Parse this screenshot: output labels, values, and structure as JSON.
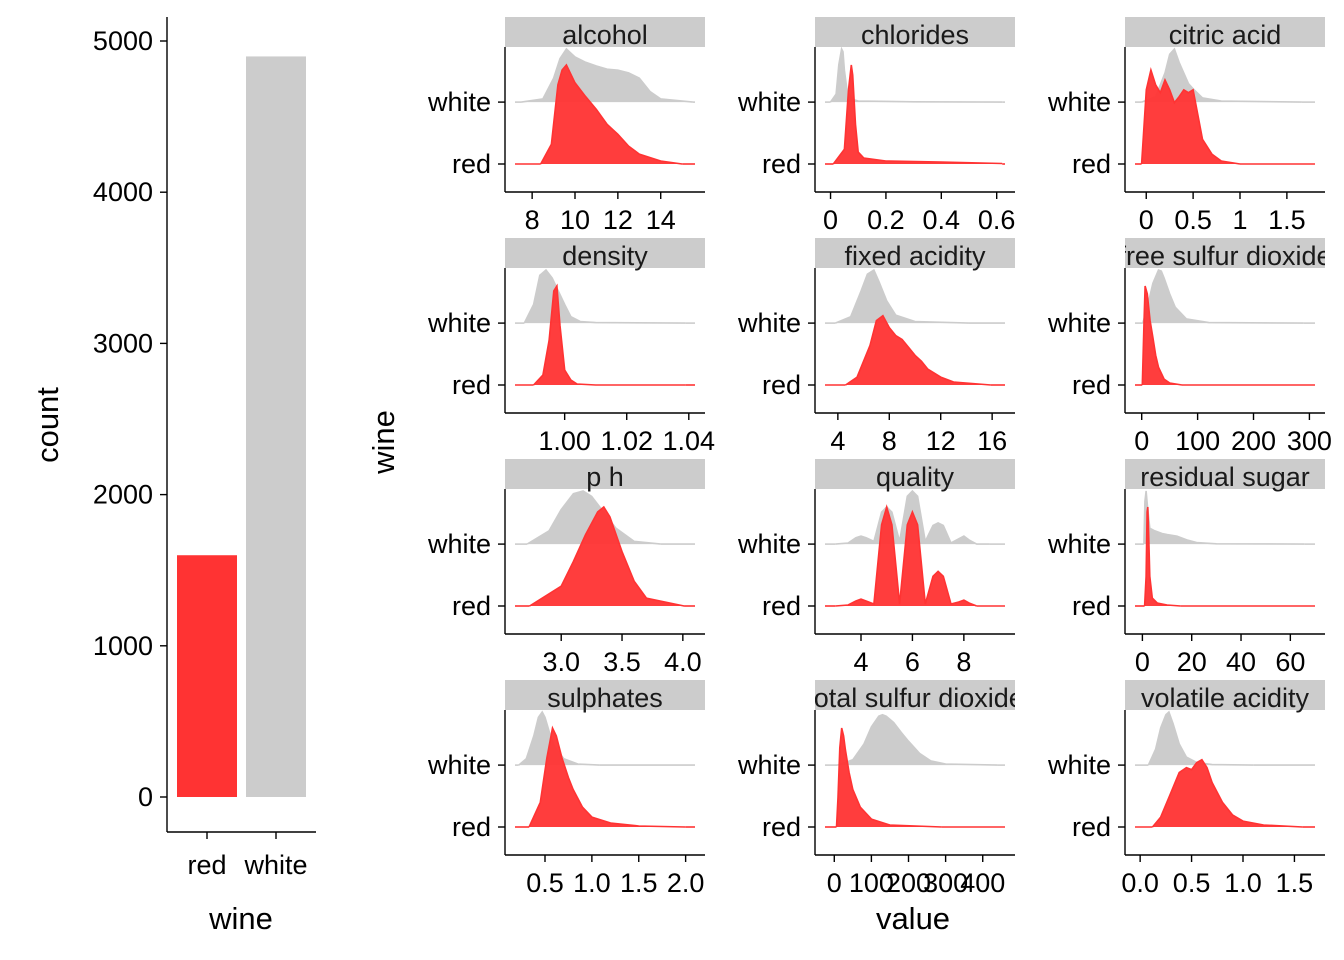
{
  "colors": {
    "red": "#ff3333",
    "white": "#cccccc",
    "strip": "#cccccc"
  },
  "chart_data": [
    {
      "type": "bar",
      "categories": [
        "red",
        "white"
      ],
      "values": [
        1599,
        4898
      ],
      "xlabel": "wine",
      "ylabel": "count",
      "ylim": [
        0,
        5130
      ],
      "yticks": [
        0,
        1000,
        2000,
        3000,
        4000,
        5000
      ],
      "grid": false
    },
    {
      "type": "area",
      "subtype": "ridgeline-density",
      "xlabel": "value",
      "ylabel": "wine",
      "rows": [
        "red",
        "white"
      ],
      "grid": false,
      "facets": [
        {
          "label": "alcohol",
          "xlim": [
            7.2,
            15.6
          ],
          "xticks": [
            8,
            10,
            12,
            14
          ],
          "white_x": [
            7.5,
            8.5,
            9.0,
            9.3,
            9.6,
            10.0,
            10.5,
            11.0,
            11.5,
            12.0,
            12.5,
            13.0,
            13.5,
            14.0,
            15.5
          ],
          "white_y": [
            0,
            0.06,
            0.45,
            0.82,
            1.0,
            0.85,
            0.75,
            0.68,
            0.62,
            0.6,
            0.55,
            0.45,
            0.2,
            0.06,
            0
          ],
          "red_x": [
            8.4,
            8.9,
            9.2,
            9.4,
            9.6,
            10.0,
            10.5,
            11.0,
            11.5,
            12.0,
            12.5,
            13.0,
            14.0,
            15.0
          ],
          "red_y": [
            0,
            0.2,
            0.8,
            0.95,
            1.0,
            0.82,
            0.68,
            0.55,
            0.4,
            0.3,
            0.18,
            0.1,
            0.03,
            0
          ]
        },
        {
          "label": "chlorides",
          "xlim": [
            -0.02,
            0.63
          ],
          "xticks": [
            0.0,
            0.2,
            0.4,
            0.6
          ],
          "white_x": [
            0.0,
            0.02,
            0.03,
            0.04,
            0.045,
            0.05,
            0.06,
            0.08,
            0.1,
            0.3,
            0.62
          ],
          "white_y": [
            0,
            0.15,
            0.7,
            1.0,
            0.95,
            0.6,
            0.2,
            0.05,
            0.02,
            0.005,
            0
          ],
          "red_x": [
            0.01,
            0.05,
            0.065,
            0.075,
            0.08,
            0.09,
            0.1,
            0.12,
            0.2,
            0.4,
            0.62
          ],
          "red_y": [
            0,
            0.15,
            0.75,
            1.0,
            0.9,
            0.4,
            0.12,
            0.06,
            0.03,
            0.02,
            0.005
          ]
        },
        {
          "label": "citric  acid",
          "xlim": [
            -0.12,
            1.8
          ],
          "xticks": [
            0.0,
            0.5,
            1.0,
            1.5
          ],
          "white_x": [
            -0.05,
            0.1,
            0.2,
            0.25,
            0.3,
            0.35,
            0.45,
            0.5,
            0.6,
            0.8,
            1.66
          ],
          "white_y": [
            0,
            0.1,
            0.55,
            0.9,
            1.0,
            0.75,
            0.35,
            0.25,
            0.08,
            0.02,
            0
          ],
          "red_x": [
            -0.05,
            0.0,
            0.05,
            0.1,
            0.15,
            0.2,
            0.25,
            0.3,
            0.35,
            0.4,
            0.45,
            0.5,
            0.55,
            0.6,
            0.7,
            0.8,
            1.0
          ],
          "red_y": [
            0,
            0.75,
            0.95,
            0.8,
            0.72,
            0.85,
            0.75,
            0.62,
            0.68,
            0.75,
            0.72,
            0.75,
            0.5,
            0.25,
            0.1,
            0.03,
            0
          ]
        },
        {
          "label": "density",
          "xlim": [
            0.984,
            1.042
          ],
          "xticks": [
            1.0,
            1.02,
            1.04
          ],
          "tick_labels": [
            "1.00",
            "1.02",
            "1.04"
          ],
          "white_x": [
            0.987,
            0.99,
            0.992,
            0.994,
            0.996,
            0.998,
            1.0,
            1.002,
            1.005,
            1.01,
            1.039
          ],
          "white_y": [
            0,
            0.35,
            0.9,
            1.0,
            0.85,
            0.6,
            0.35,
            0.12,
            0.03,
            0.01,
            0
          ],
          "red_x": [
            0.99,
            0.993,
            0.995,
            0.9965,
            0.9975,
            0.9985,
            1.0,
            1.002,
            1.004,
            1.01,
            1.039
          ],
          "red_y": [
            0,
            0.1,
            0.45,
            0.95,
            1.0,
            0.6,
            0.15,
            0.05,
            0.01,
            0,
            0
          ]
        },
        {
          "label": "fixed  acidity",
          "xlim": [
            3.0,
            17.0
          ],
          "xticks": [
            4,
            8,
            12,
            16
          ],
          "white_x": [
            3.8,
            5.0,
            5.8,
            6.3,
            6.8,
            7.2,
            7.8,
            8.5,
            10.0,
            14.2
          ],
          "white_y": [
            0,
            0.12,
            0.6,
            0.92,
            1.0,
            0.78,
            0.42,
            0.15,
            0.03,
            0
          ],
          "red_x": [
            4.6,
            5.5,
            6.5,
            7.0,
            7.5,
            8.0,
            8.5,
            9.0,
            9.5,
            10.0,
            10.5,
            11.0,
            12.0,
            13.0,
            15.9
          ],
          "red_y": [
            0,
            0.08,
            0.4,
            0.65,
            0.7,
            0.58,
            0.5,
            0.46,
            0.38,
            0.3,
            0.24,
            0.16,
            0.08,
            0.03,
            0
          ]
        },
        {
          "label": "free  sulfur  dioxide",
          "xlim": [
            -12,
            310
          ],
          "xticks": [
            0,
            100,
            200,
            300
          ],
          "white_x": [
            2,
            10,
            20,
            30,
            35,
            40,
            50,
            60,
            80,
            120,
            290
          ],
          "white_y": [
            0,
            0.3,
            0.75,
            1.0,
            0.98,
            0.85,
            0.55,
            0.3,
            0.08,
            0.01,
            0
          ],
          "red_x": [
            1,
            4,
            6,
            10,
            15,
            20,
            25,
            30,
            40,
            50,
            72
          ],
          "red_y": [
            0,
            0.6,
            1.0,
            0.92,
            0.65,
            0.48,
            0.3,
            0.18,
            0.06,
            0.02,
            0
          ]
        },
        {
          "label": "p  h",
          "xlim": [
            2.62,
            4.1
          ],
          "xticks": [
            3.0,
            3.5,
            4.0
          ],
          "tick_labels": [
            "3.0",
            "3.5",
            "4.0"
          ],
          "white_x": [
            2.72,
            2.9,
            3.0,
            3.1,
            3.18,
            3.25,
            3.35,
            3.45,
            3.6,
            3.82
          ],
          "white_y": [
            0,
            0.25,
            0.65,
            0.95,
            1.0,
            0.9,
            0.6,
            0.3,
            0.05,
            0
          ],
          "red_x": [
            2.74,
            3.0,
            3.1,
            3.2,
            3.3,
            3.35,
            3.4,
            3.5,
            3.6,
            3.7,
            4.01
          ],
          "red_y": [
            0,
            0.2,
            0.45,
            0.72,
            0.95,
            1.0,
            0.9,
            0.55,
            0.25,
            0.08,
            0
          ]
        },
        {
          "label": "quality",
          "xlim": [
            2.6,
            9.6
          ],
          "xticks": [
            4,
            6,
            8
          ],
          "white_x": [
            3.0,
            3.5,
            3.8,
            4.0,
            4.2,
            4.5,
            4.8,
            5.0,
            5.2,
            5.5,
            5.8,
            6.0,
            6.2,
            6.5,
            6.8,
            7.0,
            7.2,
            7.5,
            7.8,
            8.0,
            8.2,
            8.5,
            9.0
          ],
          "white_y": [
            0,
            0.02,
            0.12,
            0.15,
            0.12,
            0.05,
            0.6,
            0.7,
            0.6,
            0.05,
            0.9,
            1.0,
            0.9,
            0.05,
            0.35,
            0.4,
            0.35,
            0.02,
            0.1,
            0.15,
            0.08,
            0,
            0
          ],
          "red_x": [
            3.0,
            3.5,
            3.8,
            4.0,
            4.2,
            4.5,
            4.8,
            5.0,
            5.2,
            5.5,
            5.8,
            6.0,
            6.2,
            6.5,
            6.8,
            7.0,
            7.2,
            7.5,
            7.8,
            8.0,
            8.2,
            8.5
          ],
          "red_y": [
            0,
            0.01,
            0.05,
            0.07,
            0.05,
            0.02,
            0.82,
            1.0,
            0.82,
            0.02,
            0.82,
            0.95,
            0.82,
            0.02,
            0.3,
            0.35,
            0.3,
            0.02,
            0.04,
            0.06,
            0.03,
            0
          ]
        },
        {
          "label": "residual  sugar",
          "xlim": [
            -3,
            70
          ],
          "xticks": [
            0,
            20,
            40,
            60
          ],
          "white_x": [
            0.6,
            1.0,
            1.5,
            2.0,
            3.0,
            5.0,
            8.0,
            10.0,
            14.0,
            18.0,
            22.0,
            30.0,
            65.8
          ],
          "white_y": [
            0,
            0.8,
            1.0,
            0.75,
            0.3,
            0.25,
            0.2,
            0.18,
            0.15,
            0.08,
            0.03,
            0.005,
            0
          ],
          "red_x": [
            0.9,
            1.5,
            1.9,
            2.2,
            2.5,
            3.0,
            4.0,
            6.0,
            10.0,
            15.5
          ],
          "red_y": [
            0,
            0.3,
            0.95,
            1.0,
            0.75,
            0.3,
            0.08,
            0.03,
            0.01,
            0
          ]
        },
        {
          "label": "sulphates",
          "xlim": [
            0.18,
            2.1
          ],
          "xticks": [
            0.5,
            1.0,
            1.5,
            2.0
          ],
          "tick_labels": [
            "0.5",
            "1.0",
            "1.5",
            "2.0"
          ],
          "white_x": [
            0.22,
            0.3,
            0.38,
            0.43,
            0.47,
            0.5,
            0.55,
            0.6,
            0.7,
            0.85,
            1.08
          ],
          "white_y": [
            0,
            0.12,
            0.55,
            0.9,
            1.0,
            0.9,
            0.6,
            0.35,
            0.12,
            0.02,
            0
          ],
          "red_x": [
            0.33,
            0.45,
            0.52,
            0.58,
            0.62,
            0.68,
            0.75,
            0.8,
            0.9,
            1.0,
            1.2,
            1.5,
            2.0
          ],
          "red_y": [
            0,
            0.25,
            0.7,
            1.0,
            0.92,
            0.7,
            0.5,
            0.38,
            0.2,
            0.1,
            0.04,
            0.01,
            0
          ]
        },
        {
          "label": "total  sulfur  dioxide",
          "xlim": [
            -25,
            460
          ],
          "xticks": [
            0,
            100,
            200,
            300,
            400
          ],
          "white_x": [
            9,
            50,
            80,
            100,
            120,
            130,
            140,
            160,
            180,
            200,
            230,
            260,
            300,
            440
          ],
          "white_y": [
            0,
            0.1,
            0.4,
            0.72,
            0.92,
            0.95,
            0.92,
            0.8,
            0.62,
            0.45,
            0.22,
            0.08,
            0.02,
            0
          ],
          "red_x": [
            6,
            10,
            15,
            20,
            25,
            30,
            40,
            50,
            70,
            100,
            150,
            290
          ],
          "red_y": [
            0,
            0.3,
            0.8,
            1.0,
            0.92,
            0.78,
            0.55,
            0.38,
            0.2,
            0.08,
            0.02,
            0
          ]
        },
        {
          "label": "volatile  acidity",
          "xlim": [
            -0.05,
            1.7
          ],
          "xticks": [
            0.0,
            0.5,
            1.0,
            1.5
          ],
          "tick_labels": [
            "0.0",
            "0.5",
            "1.0",
            "1.5"
          ],
          "white_x": [
            0.08,
            0.15,
            0.2,
            0.25,
            0.28,
            0.32,
            0.38,
            0.45,
            0.55,
            0.7,
            1.1
          ],
          "white_y": [
            0,
            0.3,
            0.7,
            0.95,
            1.0,
            0.78,
            0.4,
            0.15,
            0.05,
            0.01,
            0
          ],
          "red_x": [
            0.12,
            0.2,
            0.3,
            0.38,
            0.45,
            0.5,
            0.55,
            0.6,
            0.65,
            0.7,
            0.8,
            0.9,
            1.0,
            1.2,
            1.58
          ],
          "red_y": [
            0,
            0.1,
            0.35,
            0.55,
            0.6,
            0.58,
            0.65,
            0.68,
            0.6,
            0.45,
            0.25,
            0.12,
            0.06,
            0.02,
            0
          ]
        }
      ]
    }
  ]
}
